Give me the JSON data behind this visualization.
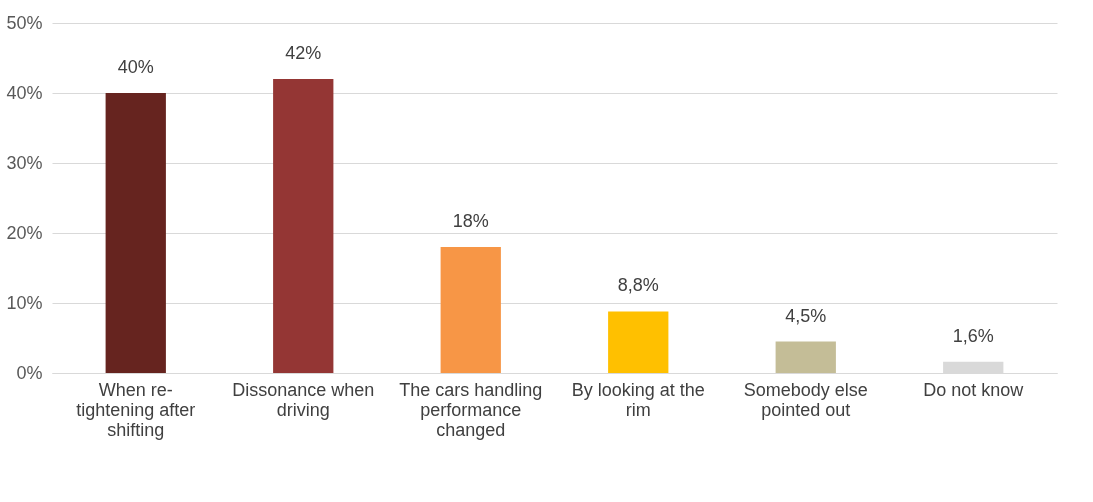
{
  "chart_data": {
    "type": "bar",
    "categories": [
      "When re-tightening after shifting",
      "Dissonance when driving",
      "The cars handling performance changed",
      "By looking at the rim",
      "Somebody else pointed out",
      "Do not know"
    ],
    "values": [
      40,
      42,
      18,
      8.8,
      4.5,
      1.6
    ],
    "colors": [
      "#66241f",
      "#943634",
      "#f79646",
      "#ffc000",
      "#c4bd97",
      "#d9d9d9"
    ],
    "value_labels": [
      "40%",
      "42%",
      "18%",
      "8,8%",
      "4,5%",
      "1,6%"
    ],
    "ylim": [
      0,
      50
    ],
    "yticks": [
      {
        "value": 0,
        "label": "0%"
      },
      {
        "value": 10,
        "label": "10%"
      },
      {
        "value": 20,
        "label": "20%"
      },
      {
        "value": 30,
        "label": "30%"
      },
      {
        "value": 40,
        "label": "40%"
      },
      {
        "value": 50,
        "label": "50%"
      }
    ],
    "grid": "y"
  }
}
